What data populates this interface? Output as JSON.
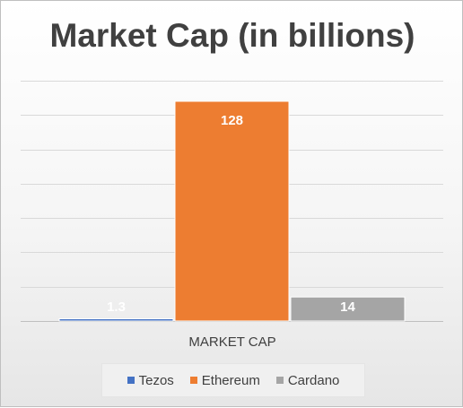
{
  "chart_data": {
    "type": "bar",
    "title": "Market Cap (in billions)",
    "categories": [
      "MARKET CAP"
    ],
    "series": [
      {
        "name": "Tezos",
        "values": [
          1.3
        ],
        "color": "#4472c4",
        "label": "1.3"
      },
      {
        "name": "Ethereum",
        "values": [
          128
        ],
        "color": "#ed7d31",
        "label": "128"
      },
      {
        "name": "Cardano",
        "values": [
          14
        ],
        "color": "#a5a5a5",
        "label": "14"
      }
    ],
    "ylim": [
      0,
      140
    ],
    "grid": true,
    "legend_position": "bottom"
  }
}
